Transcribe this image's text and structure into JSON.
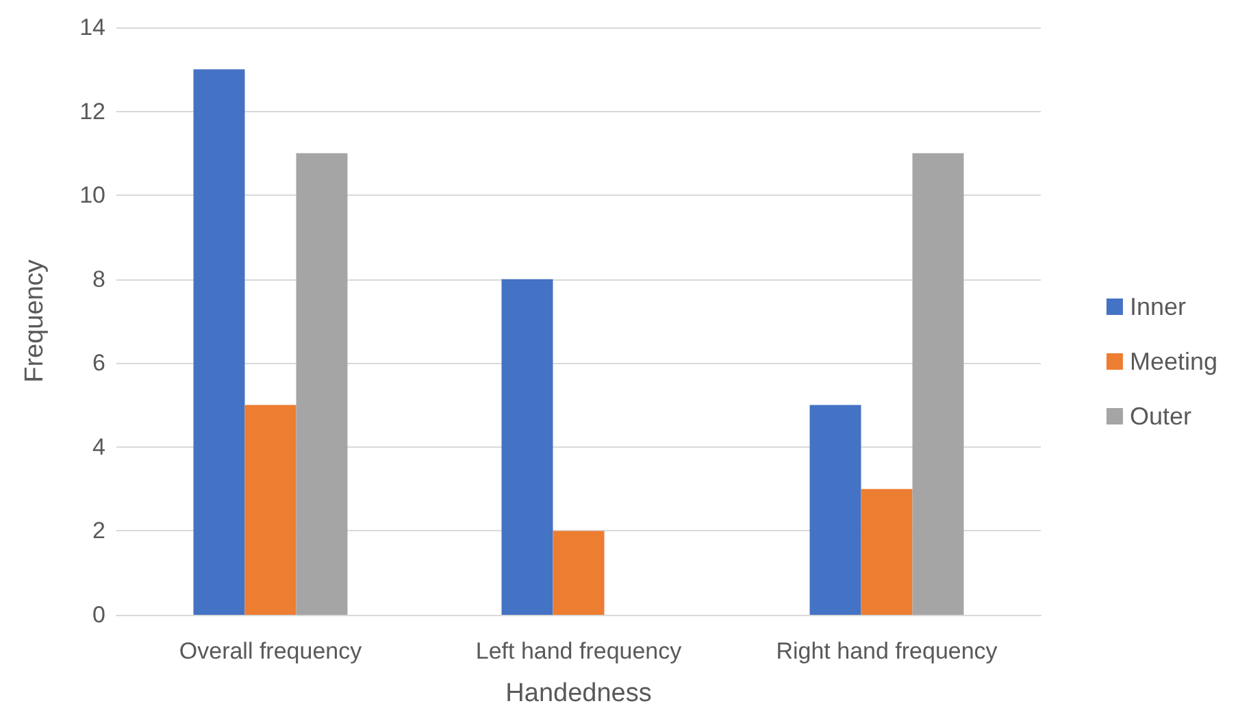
{
  "chart_data": {
    "type": "bar",
    "xlabel": "Handedness",
    "ylabel": "Frequency",
    "categories": [
      "Overall frequency",
      "Left hand frequency",
      "Right hand frequency"
    ],
    "series": [
      {
        "name": "Inner",
        "color": "#4472c4",
        "values": [
          13,
          8,
          5
        ]
      },
      {
        "name": "Meeting",
        "color": "#ed7d31",
        "values": [
          5,
          2,
          3
        ]
      },
      {
        "name": "Outer",
        "color": "#a5a5a5",
        "values": [
          11,
          0,
          11
        ]
      }
    ],
    "ylim": [
      0,
      14
    ],
    "yticks": [
      0,
      2,
      4,
      6,
      8,
      10,
      12,
      14
    ],
    "grid": "y",
    "legend": "right"
  }
}
